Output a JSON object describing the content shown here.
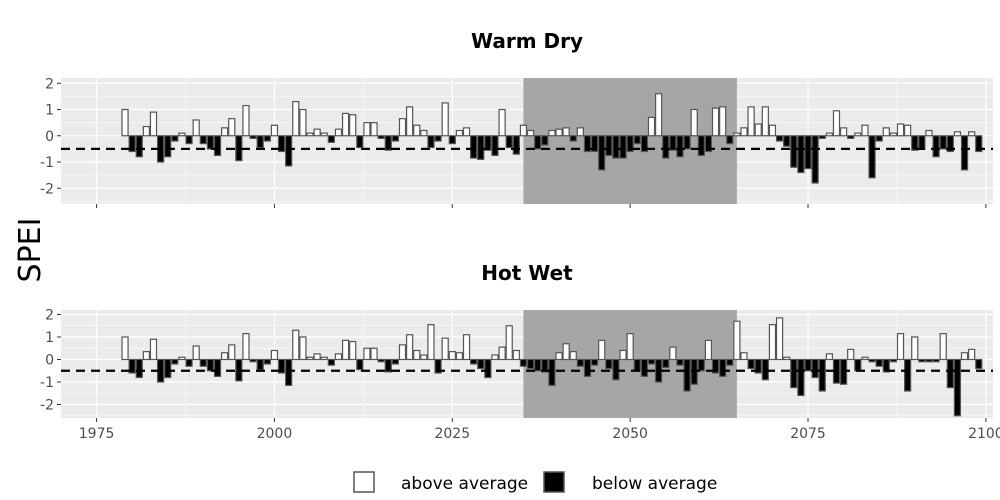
{
  "figure": {
    "ylabel": "SPEI",
    "legend": {
      "placement": "bottom",
      "items": [
        {
          "label": "above average",
          "fill": "#ffffff"
        },
        {
          "label": "below average",
          "fill": "#000000"
        }
      ]
    }
  },
  "colors": {
    "panel_bg": "#ebebeb",
    "grid": "#ffffff",
    "highlight": "#a6a6a6",
    "bar_outline": "#555555",
    "above_fill": "#ffffff",
    "below_fill": "#000000",
    "text": "#000000",
    "tick_text": "#4d4d4d"
  },
  "chart_data": [
    {
      "type": "bar",
      "title": "Warm Dry",
      "xlim": [
        1970,
        2101
      ],
      "ylim": [
        -2.6,
        2.2
      ],
      "y_ticks": [
        -2,
        -1,
        0,
        1,
        2
      ],
      "x_ticks": [
        1975,
        2000,
        2025,
        2050,
        2075,
        2100
      ],
      "x_tick_labels_shown": false,
      "threshold": -0.5,
      "highlight_range": [
        2035,
        2065
      ],
      "series": [
        {
          "x": [
            1979,
            1980,
            1981,
            1982,
            1983,
            1984,
            1985,
            1986,
            1987,
            1988,
            1989,
            1990,
            1991,
            1992,
            1993,
            1994,
            1995,
            1996,
            1997,
            1998,
            1999,
            2000,
            2001,
            2002,
            2003,
            2004,
            2005,
            2006,
            2007,
            2008,
            2009,
            2010,
            2011,
            2012,
            2013,
            2014,
            2015,
            2016,
            2017,
            2018,
            2019,
            2020,
            2021
          ],
          "values": [
            1.0,
            -0.6,
            -0.8,
            0.35,
            0.9,
            -1.0,
            -0.8,
            -0.2,
            0.1,
            -0.3,
            0.6,
            -0.3,
            -0.5,
            -0.75,
            0.3,
            0.65,
            -0.95,
            1.15,
            -0.1,
            -0.45,
            -0.2,
            0.4,
            -0.6,
            -1.15,
            1.3,
            1.0,
            0.1,
            0.25,
            0.1,
            -0.25,
            0.25,
            0.85,
            0.8,
            -0.45,
            0.5,
            0.5,
            -0.1,
            -0.55,
            -0.2,
            0.65,
            1.1,
            0.4,
            0.2
          ]
        },
        {
          "x": [
            2022,
            2023,
            2024,
            2025,
            2026,
            2027,
            2028,
            2029,
            2030,
            2031,
            2032,
            2033,
            2034,
            2035,
            2036,
            2037,
            2038,
            2039,
            2040,
            2041,
            2042,
            2043,
            2044,
            2045,
            2046,
            2047,
            2048,
            2049,
            2050,
            2051,
            2052,
            2053,
            2054,
            2055,
            2056,
            2057,
            2058,
            2059,
            2060,
            2061,
            2062,
            2063,
            2064,
            2065,
            2066,
            2067,
            2068,
            2069,
            2070,
            2071,
            2072,
            2073,
            2074,
            2075,
            2076,
            2077,
            2078,
            2079,
            2080,
            2081,
            2082,
            2083,
            2084,
            2085,
            2086,
            2087,
            2088,
            2089,
            2090,
            2091,
            2092,
            2093,
            2094,
            2095,
            2096,
            2097,
            2098,
            2099
          ],
          "values": [
            -0.45,
            -0.2,
            1.25,
            -0.3,
            0.2,
            0.3,
            -0.85,
            -0.9,
            -0.55,
            -0.75,
            1.0,
            -0.45,
            -0.7,
            0.4,
            0.2,
            -0.5,
            -0.35,
            0.2,
            0.25,
            0.3,
            -0.2,
            0.3,
            -0.6,
            -0.6,
            -1.3,
            -0.75,
            -0.85,
            -0.85,
            -0.6,
            -0.3,
            -0.6,
            0.7,
            1.6,
            -0.85,
            -0.55,
            -0.8,
            -0.5,
            1.0,
            -0.75,
            -0.6,
            1.05,
            1.1,
            -0.3,
            0.1,
            0.3,
            1.1,
            0.45,
            1.1,
            0.4,
            -0.2,
            -0.4,
            -1.2,
            -1.4,
            -1.25,
            -1.8,
            -0.1,
            0.1,
            0.95,
            0.3,
            -0.1,
            0.1,
            0.4,
            -1.6,
            -0.2,
            0.3,
            0.1,
            0.45,
            0.4,
            -0.55,
            -0.5,
            0.2,
            -0.8,
            -0.5,
            -0.6,
            0.15,
            -1.3,
            0.15,
            -0.6
          ]
        }
      ]
    },
    {
      "type": "bar",
      "title": "Hot Wet",
      "xlim": [
        1970,
        2101
      ],
      "ylim": [
        -2.6,
        2.2
      ],
      "y_ticks": [
        -2,
        -1,
        0,
        1,
        2
      ],
      "x_ticks": [
        1975,
        2000,
        2025,
        2050,
        2075,
        2100
      ],
      "x_tick_labels_shown": true,
      "threshold": -0.5,
      "highlight_range": [
        2035,
        2065
      ],
      "series": [
        {
          "x": [
            1979,
            1980,
            1981,
            1982,
            1983,
            1984,
            1985,
            1986,
            1987,
            1988,
            1989,
            1990,
            1991,
            1992,
            1993,
            1994,
            1995,
            1996,
            1997,
            1998,
            1999,
            2000,
            2001,
            2002,
            2003,
            2004,
            2005,
            2006,
            2007,
            2008,
            2009,
            2010,
            2011,
            2012,
            2013,
            2014,
            2015,
            2016,
            2017,
            2018,
            2019,
            2020,
            2021
          ],
          "values": [
            1.0,
            -0.6,
            -0.8,
            0.35,
            0.9,
            -1.0,
            -0.8,
            -0.2,
            0.1,
            -0.3,
            0.6,
            -0.3,
            -0.5,
            -0.75,
            0.3,
            0.65,
            -0.95,
            1.15,
            -0.1,
            -0.45,
            -0.2,
            0.4,
            -0.6,
            -1.15,
            1.3,
            1.0,
            0.1,
            0.25,
            0.1,
            -0.25,
            0.25,
            0.85,
            0.8,
            -0.45,
            0.5,
            0.5,
            -0.1,
            -0.55,
            -0.2,
            0.65,
            1.1,
            0.4,
            0.2
          ]
        },
        {
          "x": [
            2022,
            2023,
            2024,
            2025,
            2026,
            2027,
            2028,
            2029,
            2030,
            2031,
            2032,
            2033,
            2034,
            2035,
            2036,
            2037,
            2038,
            2039,
            2040,
            2041,
            2042,
            2043,
            2044,
            2045,
            2046,
            2047,
            2048,
            2049,
            2050,
            2051,
            2052,
            2053,
            2054,
            2055,
            2056,
            2057,
            2058,
            2059,
            2060,
            2061,
            2062,
            2063,
            2064,
            2065,
            2066,
            2067,
            2068,
            2069,
            2070,
            2071,
            2072,
            2073,
            2074,
            2075,
            2076,
            2077,
            2078,
            2079,
            2080,
            2081,
            2082,
            2083,
            2084,
            2085,
            2086,
            2087,
            2088,
            2089,
            2090,
            2091,
            2092,
            2093,
            2094,
            2095,
            2096,
            2097,
            2098,
            2099
          ],
          "values": [
            1.55,
            -0.6,
            0.95,
            0.35,
            0.3,
            1.1,
            -0.2,
            -0.4,
            -0.8,
            0.2,
            0.55,
            1.5,
            0.4,
            -0.3,
            -0.4,
            -0.5,
            -0.55,
            -1.15,
            0.3,
            0.7,
            0.35,
            -0.3,
            -0.75,
            -0.25,
            0.85,
            -0.4,
            -0.9,
            0.4,
            1.15,
            -0.5,
            -0.75,
            -0.2,
            -1.0,
            -0.35,
            0.55,
            -0.25,
            -1.4,
            -1.1,
            -0.5,
            0.85,
            -0.6,
            -0.75,
            -0.25,
            1.7,
            0.3,
            -0.4,
            -0.6,
            -0.9,
            1.55,
            1.85,
            0.1,
            -1.25,
            -1.6,
            -0.5,
            -0.8,
            -1.4,
            0.25,
            -1.05,
            -1.1,
            0.45,
            -0.5,
            0.1,
            -0.1,
            -0.3,
            -0.55,
            -0.1,
            1.15,
            -1.4,
            1.0,
            -0.1,
            -0.1,
            -0.1,
            1.15,
            -1.25,
            -2.5,
            0.3,
            0.45,
            -0.4
          ]
        }
      ]
    }
  ]
}
